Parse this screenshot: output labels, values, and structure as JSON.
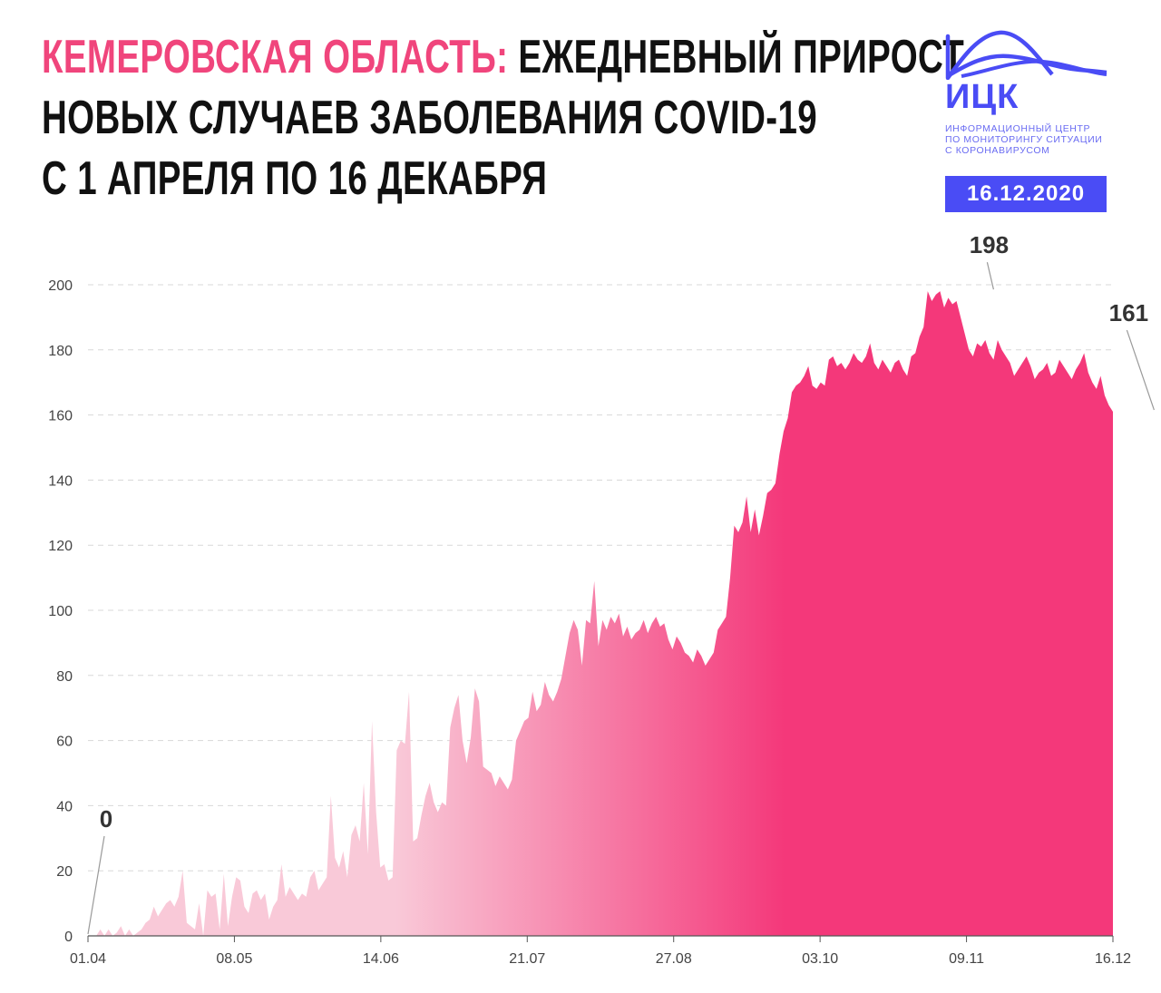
{
  "header": {
    "title_region": "КЕМЕРОВСКАЯ ОБЛАСТЬ:",
    "title_line1_rest": " ЕЖЕДНЕВНЫЙ ПРИРОСТ",
    "title_line2": "НОВЫХ СЛУЧАЕВ ЗАБОЛЕВАНИЯ COVID-19",
    "title_line3": "С 1 АПРЕЛЯ ПО 16 ДЕКАБРЯ"
  },
  "logo": {
    "abbr": "ИЦК",
    "subtitle": "ИНФОРМАЦИОННЫЙ ЦЕНТР\nПО МОНИТОРИНГУ СИТУАЦИИ\nС КОРОНАВИРУСОМ",
    "date": "16.12.2020",
    "color": "#4a4cf5"
  },
  "chart_data": {
    "type": "area",
    "x_start": "01.04",
    "x_end": "16.12",
    "x_ticks": [
      "01.04",
      "08.05",
      "14.06",
      "21.07",
      "27.08",
      "03.10",
      "09.11",
      "16.12"
    ],
    "y_ticks": [
      0,
      20,
      40,
      60,
      80,
      100,
      120,
      140,
      160,
      180,
      200
    ],
    "ylim": [
      0,
      200
    ],
    "grid": "horizontal-dashed",
    "colors": {
      "start": "#f9c9d8",
      "end": "#f4387a"
    },
    "values": [
      0,
      0,
      0,
      2,
      0,
      2,
      0,
      1,
      3,
      0,
      2,
      0,
      1,
      2,
      4,
      5,
      9,
      6,
      8,
      10,
      11,
      9,
      12,
      20,
      4,
      3,
      2,
      10,
      0,
      14,
      12,
      13,
      2,
      19,
      3,
      12,
      18,
      17,
      9,
      7,
      13,
      14,
      11,
      13,
      5,
      9,
      11,
      22,
      12,
      15,
      13,
      11,
      13,
      12,
      18,
      20,
      14,
      16,
      18,
      43,
      24,
      21,
      26,
      18,
      31,
      34,
      29,
      47,
      25,
      66,
      38,
      21,
      22,
      17,
      18,
      57,
      60,
      59,
      75,
      29,
      30,
      37,
      43,
      47,
      41,
      38,
      41,
      40,
      64,
      70,
      74,
      60,
      53,
      61,
      76,
      72,
      52,
      51,
      50,
      46,
      49,
      47,
      45,
      48,
      60,
      63,
      66,
      67,
      75,
      69,
      71,
      78,
      74,
      72,
      75,
      79,
      86,
      93,
      97,
      94,
      83,
      97,
      96,
      109,
      89,
      97,
      94,
      98,
      96,
      99,
      92,
      95,
      91,
      93,
      94,
      97,
      93,
      96,
      98,
      95,
      96,
      91,
      88,
      92,
      90,
      87,
      86,
      84,
      88,
      86,
      83,
      85,
      87,
      94,
      96,
      98,
      110,
      126,
      124,
      127,
      135,
      124,
      131,
      123,
      129,
      136,
      137,
      139,
      148,
      155,
      159,
      167,
      169,
      170,
      172,
      175,
      169,
      168,
      170,
      169,
      177,
      178,
      175,
      176,
      174,
      176,
      179,
      177,
      176,
      178,
      182,
      176,
      174,
      177,
      175,
      173,
      176,
      177,
      174,
      172,
      178,
      179,
      184,
      187,
      198,
      195,
      197,
      198,
      193,
      196,
      194,
      195,
      190,
      185,
      180,
      178,
      182,
      181,
      183,
      179,
      177,
      183,
      180,
      178,
      176,
      172,
      174,
      176,
      178,
      175,
      171,
      173,
      174,
      176,
      172,
      173,
      177,
      175,
      173,
      171,
      174,
      176,
      179,
      173,
      170,
      168,
      172,
      166,
      163,
      161
    ],
    "annotations": [
      {
        "label": "0",
        "date_index": 0,
        "value": 0
      },
      {
        "label": "198",
        "date_index": 220,
        "value": 198
      },
      {
        "label": "161",
        "date_index": 259,
        "value": 161
      }
    ]
  }
}
